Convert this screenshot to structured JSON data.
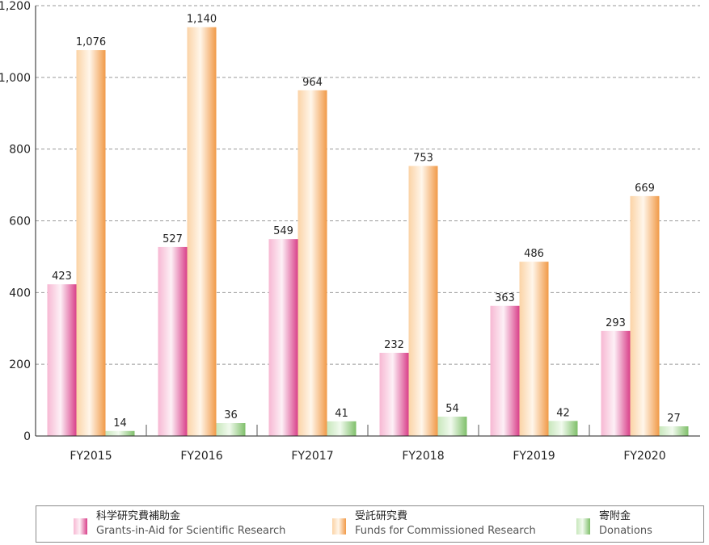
{
  "chart_data": {
    "type": "bar",
    "categories": [
      "FY2015",
      "FY2016",
      "FY2017",
      "FY2018",
      "FY2019",
      "FY2020"
    ],
    "series": [
      {
        "name": "科学研究費補助金 Grants-in-Aid for Scientific Research",
        "name_jp": "科学研究費補助金",
        "name_en": "Grants-in-Aid for Scientific Research",
        "values": [
          423,
          527,
          549,
          232,
          363,
          293
        ],
        "color": "#e0508a"
      },
      {
        "name": "受託研究費 Funds for Commissioned Research",
        "name_jp": "受託研究費",
        "name_en": "Funds for Commissioned Research",
        "values": [
          1076,
          1140,
          964,
          753,
          486,
          669
        ],
        "color": "#f5a860"
      },
      {
        "name": "寄附金 Donations",
        "name_jp": "寄附金",
        "name_en": "Donations",
        "values": [
          14,
          36,
          41,
          54,
          42,
          27
        ],
        "color": "#8cc87a"
      }
    ],
    "yticks": [
      "0",
      "200",
      "400",
      "600",
      "800",
      "1,000",
      "1,200"
    ],
    "ylim": [
      0,
      1200
    ],
    "grid": true,
    "legend_position": "bottom"
  }
}
